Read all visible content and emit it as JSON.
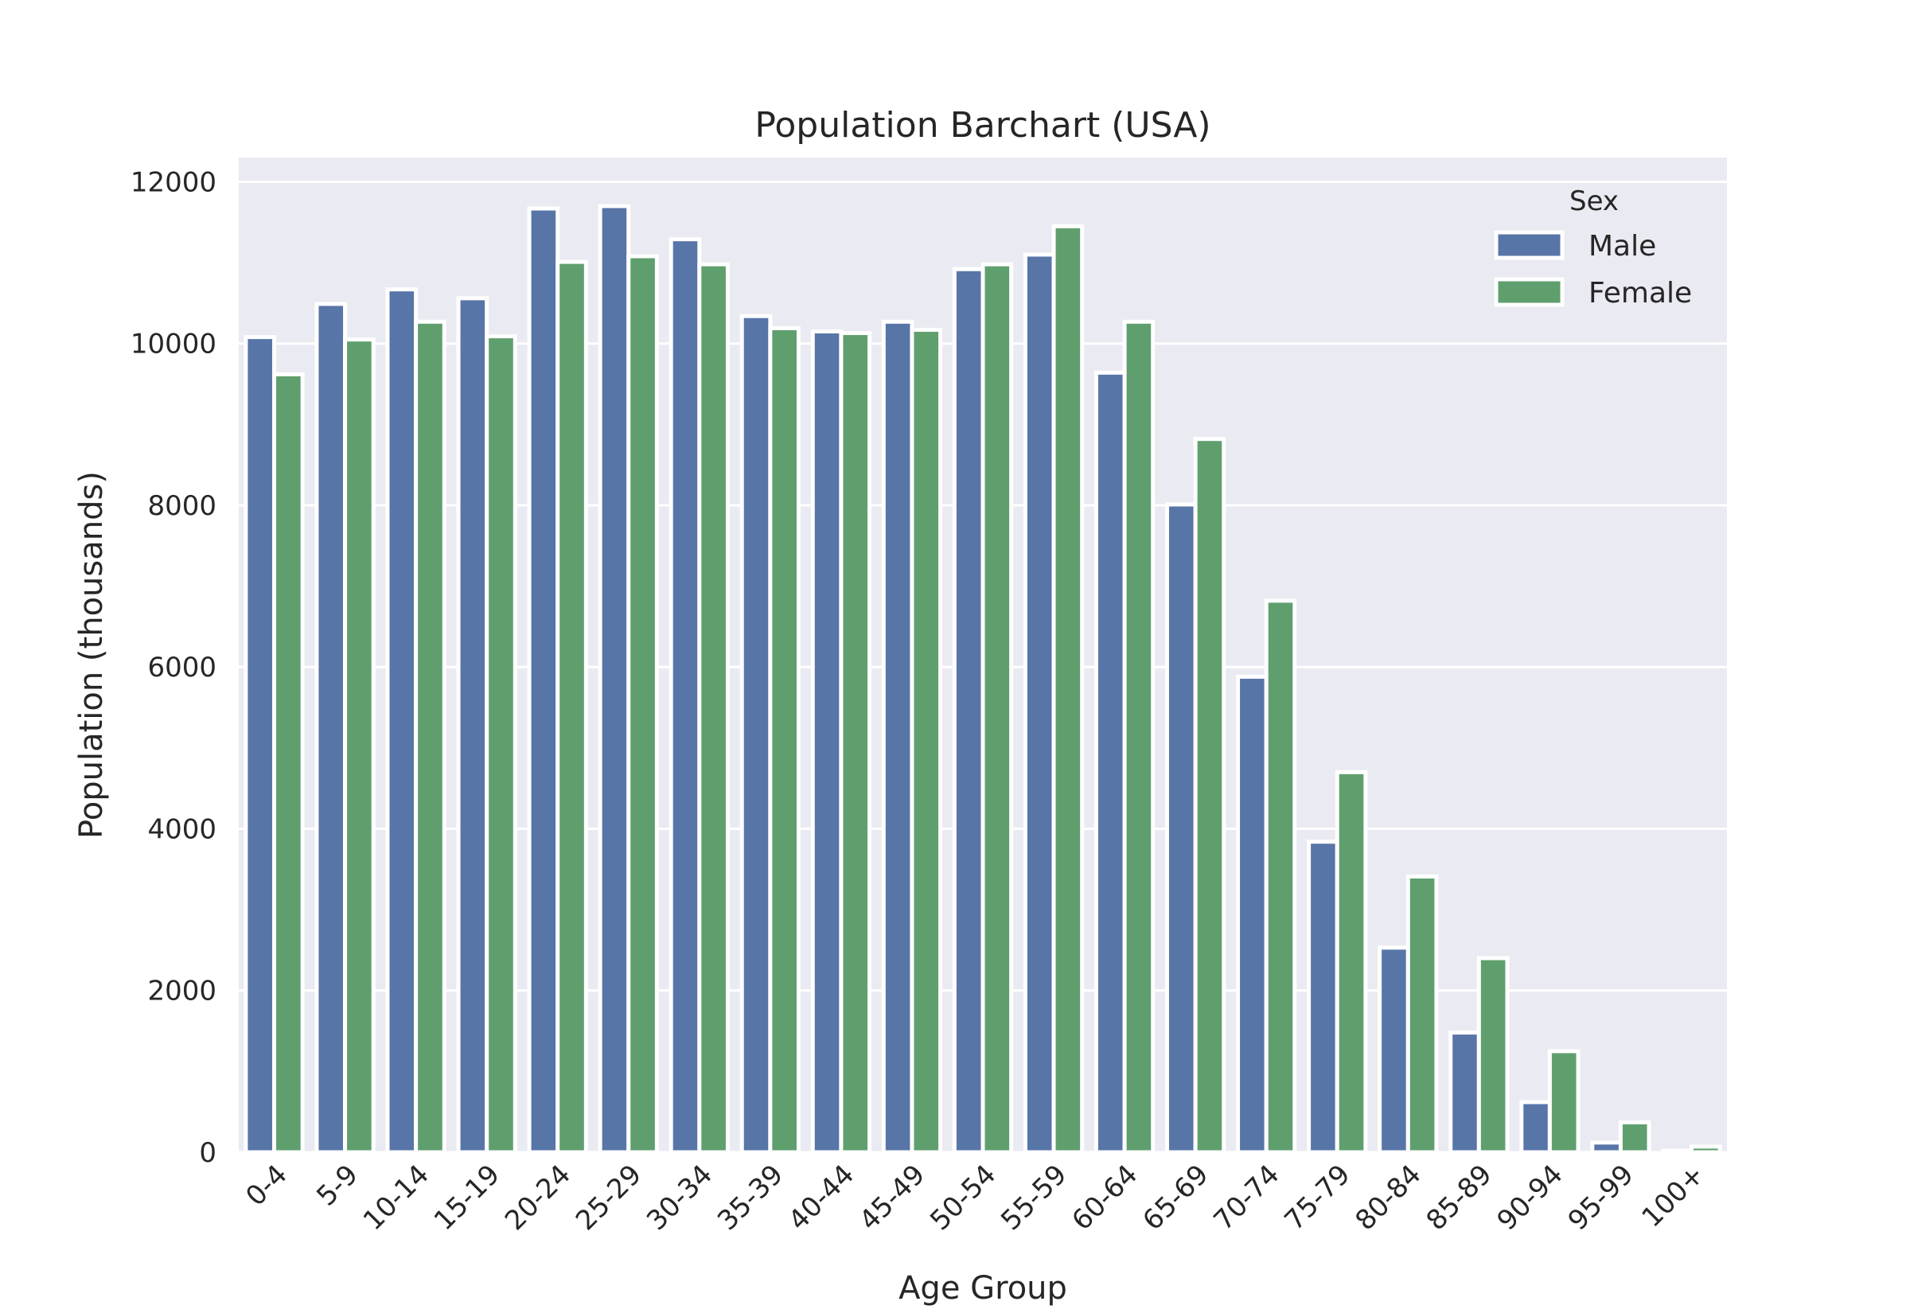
{
  "chart_data": {
    "type": "bar",
    "title": "Population Barchart (USA)",
    "xlabel": "Age Group",
    "ylabel": "Population (thousands)",
    "ylim": [
      0,
      12300
    ],
    "yticks": [
      0,
      2000,
      4000,
      6000,
      8000,
      10000,
      12000
    ],
    "grid": true,
    "legend": {
      "title": "Sex",
      "placement": "top-right"
    },
    "categories": [
      "0-4",
      "5-9",
      "10-14",
      "15-19",
      "20-24",
      "25-29",
      "30-34",
      "35-39",
      "40-44",
      "45-49",
      "50-54",
      "55-59",
      "60-64",
      "65-69",
      "70-74",
      "75-79",
      "80-84",
      "85-89",
      "90-94",
      "95-99",
      "100+"
    ],
    "series": [
      {
        "name": "Male",
        "color": "#5875a8",
        "values": [
          10080,
          10490,
          10670,
          10560,
          11670,
          11700,
          11290,
          10340,
          10150,
          10270,
          10920,
          11100,
          9640,
          8010,
          5880,
          3840,
          2530,
          1480,
          620,
          120,
          20
        ]
      },
      {
        "name": "Female",
        "color": "#5f9f6e",
        "values": [
          9620,
          10050,
          10270,
          10090,
          11010,
          11080,
          10980,
          10190,
          10130,
          10170,
          10980,
          11450,
          10270,
          8820,
          6820,
          4700,
          3410,
          2400,
          1250,
          370,
          70
        ]
      }
    ]
  }
}
